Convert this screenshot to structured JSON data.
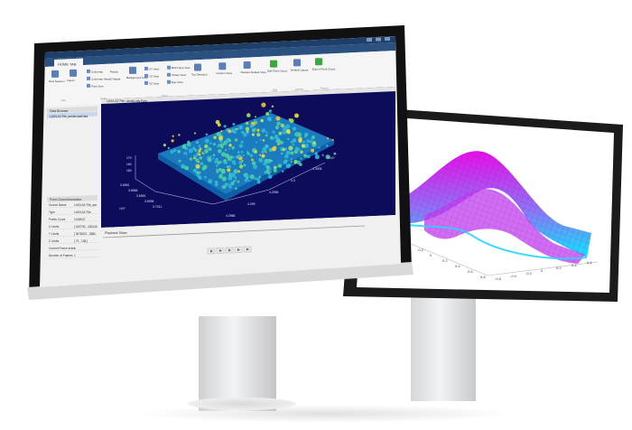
{
  "app": {
    "tab_label": "HOME TAB",
    "colors": {
      "title_bar": "#1e3f6a",
      "toolstrip": "#f5f5f5",
      "viewer_bg": "#0c0c5a",
      "panel_bg": "#f0f0f0",
      "accent": "#0072bd",
      "surface_top": "#e800e8",
      "surface_low": "#00e4ff"
    }
  },
  "toolstrip": {
    "groups": [
      {
        "name": "file",
        "buttons": [
          "New Session",
          "Import"
        ],
        "label": "File"
      },
      {
        "name": "colormap",
        "items": [
          "Colormap",
          "Colormap Value",
          "Point Size"
        ],
        "values": [
          "Parula",
          "Z Height",
          ""
        ],
        "label": "Color"
      },
      {
        "name": "background",
        "buttons": [
          "Background Color"
        ],
        "label": ""
      },
      {
        "name": "views",
        "items": [
          "XY View",
          "YZ View",
          "XZ View",
          "Bird's Eye View",
          "Chase View",
          "Ego View"
        ],
        "label": "View"
      },
      {
        "name": "custom",
        "buttons": [
          "Top Direction",
          "Custom View",
          "Restore Default View"
        ],
        "label": ""
      },
      {
        "name": "edit",
        "buttons": [
          "Edit Point Cloud"
        ],
        "label": "Edit"
      },
      {
        "name": "layout",
        "buttons": [
          "Default Layout"
        ],
        "label": "Layout"
      },
      {
        "name": "export",
        "buttons": [
          "Export Point Cloud"
        ],
        "label": "Export"
      }
    ]
  },
  "data_browser": {
    "title": "Data Browser",
    "item": "LAS/LAZ File_aerialLidarData"
  },
  "viewer": {
    "tab": "LAS/LAZ File: aerialLidarData",
    "z_ticks": [
      "170",
      "160",
      "150"
    ],
    "x_ticks": [
      "3.6951",
      "3.6966",
      "3.6981",
      "3.6996",
      "3.7011"
    ],
    "y_ticks": [
      "4.2985",
      "4.299",
      "4.2995",
      "4.3",
      "4.3005"
    ],
    "x_exp": "×10⁵",
    "y_exp": "×10⁶"
  },
  "playback": {
    "title": "Playback Slider",
    "controls": [
      "first-icon",
      "prev-icon",
      "play-icon",
      "next-icon",
      "last-icon"
    ]
  },
  "info_panel": {
    "title": "Point Cloud Information",
    "rows": [
      {
        "k": "Source Name",
        "v": "LAS/LAZ File_aer"
      },
      {
        "k": "Type",
        "v": "LAS/LAZ File"
      },
      {
        "k": "Points Count",
        "v": "1018047"
      },
      {
        "k": "X Limits",
        "v": "[ 429740 , 430145"
      },
      {
        "k": "Y Limits",
        "v": "[ 3678021 , 3680"
      },
      {
        "k": "Z Limits",
        "v": "[ 73 , 138 ]"
      },
      {
        "k": "Current Frame Index",
        "v": "1"
      },
      {
        "k": "Number of Frames",
        "v": "1"
      }
    ]
  },
  "surface_plot": {
    "ticks_x": [
      "-0.6",
      "-0.4",
      "-0.2",
      "0",
      "0.2",
      "0.4",
      "0.6",
      "0.8"
    ],
    "ticks_y": [
      "-0.6",
      "-0.4",
      "-0.2",
      "0",
      "0.2",
      "0.4",
      "0.6"
    ],
    "ticks_z": [
      "0.6",
      "0.4",
      "0.2",
      "0",
      "-0.2"
    ]
  }
}
